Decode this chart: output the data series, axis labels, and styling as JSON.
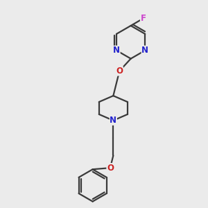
{
  "background_color": "#ebebeb",
  "bond_color": "#3a3a3a",
  "bond_width": 1.6,
  "N_color": "#2222cc",
  "O_color": "#cc2222",
  "F_color": "#cc44cc",
  "font_size_atom": 8.5,
  "figsize": [
    3.0,
    3.0
  ],
  "dpi": 100,
  "xlim": [
    0,
    10
  ],
  "ylim": [
    0,
    10
  ]
}
